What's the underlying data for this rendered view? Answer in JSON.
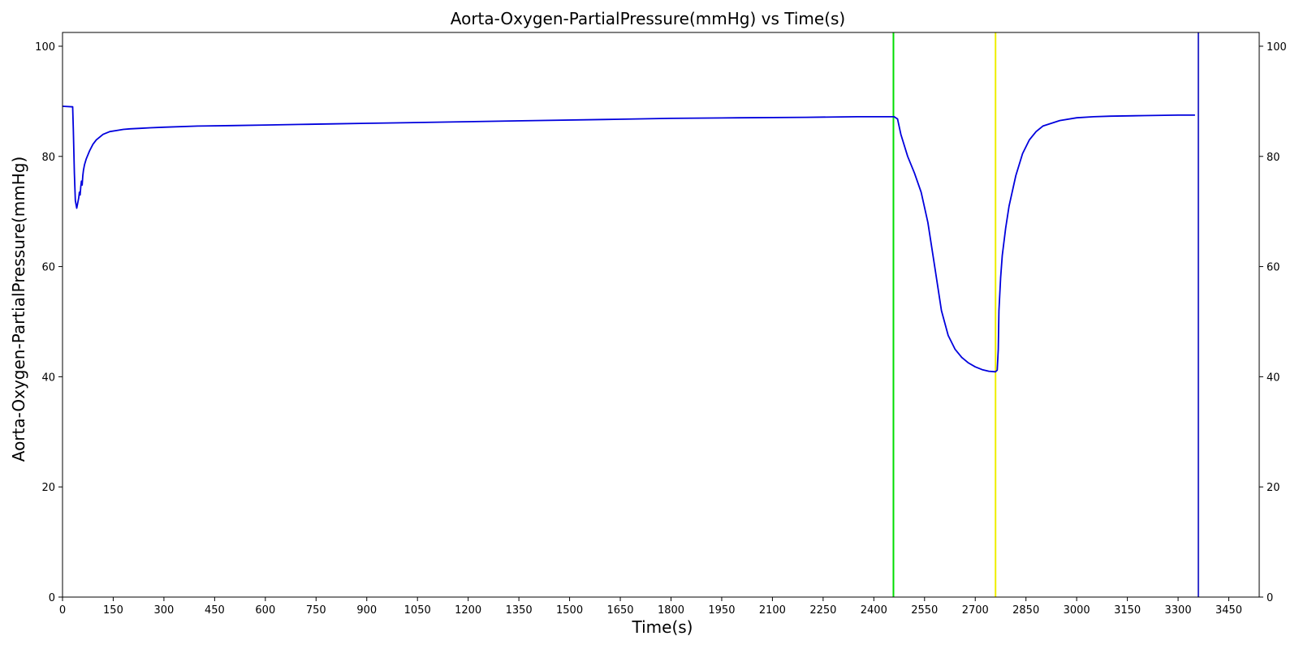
{
  "chart_data": {
    "type": "line",
    "title": "Aorta-Oxygen-PartialPressure(mmHg) vs Time(s)",
    "xlabel": "Time(s)",
    "ylabel": "Aorta-Oxygen-PartialPressure(mmHg)",
    "xlim": [
      0,
      3540
    ],
    "ylim": [
      0,
      102.5
    ],
    "x_ticks": [
      0,
      150,
      300,
      450,
      600,
      750,
      900,
      1050,
      1200,
      1350,
      1500,
      1650,
      1800,
      1950,
      2100,
      2250,
      2400,
      2550,
      2700,
      2850,
      3000,
      3150,
      3300,
      3450
    ],
    "y_ticks": [
      0,
      20,
      40,
      60,
      80,
      100
    ],
    "right_y_axis": true,
    "grid": false,
    "series": [
      {
        "color": "#0000dd",
        "x": [
          0,
          30,
          32,
          35,
          38,
          42,
          45,
          48,
          50,
          52,
          54,
          56,
          58,
          60,
          62,
          65,
          70,
          80,
          90,
          100,
          120,
          140,
          160,
          180,
          200,
          230,
          260,
          300,
          400,
          500,
          600,
          700,
          800,
          900,
          1000,
          1200,
          1400,
          1600,
          1800,
          2000,
          2200,
          2350,
          2400,
          2460,
          2470,
          2480,
          2500,
          2520,
          2540,
          2560,
          2580,
          2600,
          2620,
          2640,
          2660,
          2680,
          2700,
          2720,
          2740,
          2760,
          2765,
          2768,
          2770,
          2775,
          2780,
          2790,
          2800,
          2820,
          2840,
          2860,
          2880,
          2900,
          2950,
          3000,
          3050,
          3100,
          3200,
          3300,
          3350
        ],
        "y": [
          89.1,
          89.0,
          85.0,
          77.0,
          72.0,
          70.6,
          71.5,
          72.5,
          73.5,
          73.0,
          74.5,
          75.5,
          74.8,
          76.5,
          77.5,
          78.5,
          79.5,
          81.0,
          82.2,
          83.0,
          84.0,
          84.5,
          84.7,
          84.9,
          85.0,
          85.1,
          85.2,
          85.3,
          85.5,
          85.6,
          85.7,
          85.8,
          85.9,
          86.0,
          86.1,
          86.3,
          86.5,
          86.7,
          86.9,
          87.0,
          87.1,
          87.2,
          87.2,
          87.2,
          86.8,
          84.0,
          80.0,
          77.0,
          73.5,
          68.0,
          60.0,
          52.0,
          47.5,
          45.0,
          43.5,
          42.5,
          41.8,
          41.3,
          41.0,
          40.9,
          41.2,
          45.0,
          52.0,
          58.0,
          62.0,
          67.0,
          71.0,
          76.5,
          80.5,
          83.0,
          84.5,
          85.5,
          86.5,
          87.0,
          87.2,
          87.3,
          87.4,
          87.5,
          87.5
        ]
      }
    ],
    "vertical_lines": [
      {
        "x": 2458,
        "color": "#00dd00"
      },
      {
        "x": 2760,
        "color": "#eeee00"
      },
      {
        "x": 3360,
        "color": "#3333cc"
      }
    ]
  }
}
